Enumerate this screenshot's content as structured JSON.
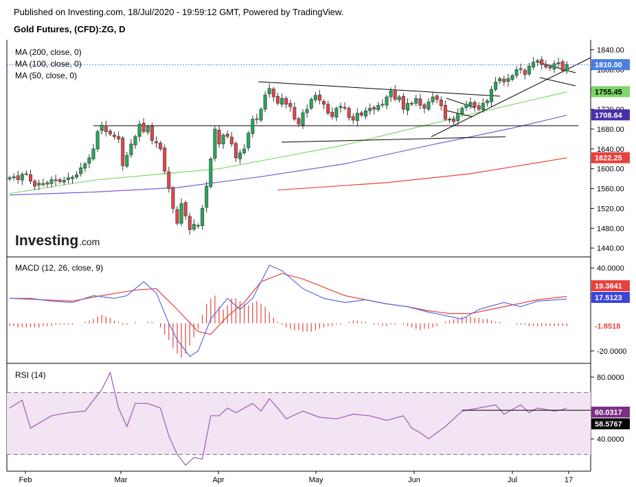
{
  "header": {
    "published": "Published on Investing.com, 18/Jul/2020 - 19:59:12 GMT, Powered by TradingView.",
    "symbol": "Gold Futures, (CFD):ZG, D"
  },
  "logo": {
    "main": "Investing",
    "suffix": ".com"
  },
  "colors": {
    "up_candle": "#26a65b",
    "down_candle": "#e0474c",
    "ma50": "#7ed66a",
    "ma100": "#7a5ad6",
    "ma200": "#e8413c",
    "macd_line": "#5b6ae0",
    "signal_line": "#e8413c",
    "histogram": "#e8413c",
    "rsi_line": "#9b59b6",
    "rsi_band": "#f3e4f3",
    "price_badge": "#4a7fe0",
    "ma50_badge": "#7ed66a",
    "ma100_badge": "#4a30a8",
    "ma200_badge": "#e8413c"
  },
  "chart_data": [
    {
      "type": "candlestick",
      "panel": "price",
      "ma_labels": [
        "MA (200, close, 0)",
        "MA (100, close, 0)",
        "MA (50, close, 0)"
      ],
      "y_ticks": [
        "1840.00",
        "1800.00",
        "1760.00",
        "1720.00",
        "1680.00",
        "1640.00",
        "1600.00",
        "1560.00",
        "1520.00",
        "1480.00",
        "1440.00"
      ],
      "ylim": [
        1425,
        1860
      ],
      "x_labels": [
        "Feb",
        "Mar",
        "Apr",
        "May",
        "Jun",
        "Jul",
        "17"
      ],
      "badges": {
        "last_price": "1810.00",
        "ma50": "1755.45",
        "ma100": "1708.64",
        "ma200": "1622.25"
      },
      "last_price": 1810,
      "closes": [
        1582,
        1584,
        1578,
        1589,
        1590,
        1575,
        1565,
        1571,
        1568,
        1572,
        1578,
        1576,
        1574,
        1577,
        1582,
        1583,
        1588,
        1602,
        1610,
        1622,
        1640,
        1675,
        1688,
        1675,
        1670,
        1665,
        1660,
        1606,
        1627,
        1650,
        1665,
        1690,
        1675,
        1685,
        1657,
        1652,
        1640,
        1595,
        1560,
        1520,
        1490,
        1530,
        1505,
        1477,
        1488,
        1485,
        1520,
        1565,
        1620,
        1680,
        1650,
        1668,
        1665,
        1650,
        1622,
        1632,
        1640,
        1672,
        1700,
        1700,
        1720,
        1749,
        1762,
        1745,
        1732,
        1742,
        1730,
        1725,
        1700,
        1690,
        1713,
        1720,
        1740,
        1748,
        1738,
        1730,
        1712,
        1705,
        1722,
        1726,
        1722,
        1703,
        1698,
        1712,
        1708,
        1717,
        1722,
        1720,
        1728,
        1730,
        1745,
        1757,
        1740,
        1745,
        1720,
        1732,
        1730,
        1742,
        1728,
        1722,
        1735,
        1745,
        1740,
        1727,
        1700,
        1700,
        1695,
        1712,
        1722,
        1730,
        1734,
        1725,
        1720,
        1732,
        1737,
        1760,
        1775,
        1782,
        1775,
        1782,
        1788,
        1800,
        1800,
        1790,
        1807,
        1815,
        1818,
        1810,
        1805,
        1803,
        1812,
        1814,
        1798,
        1810
      ],
      "ma50": [
        [
          0,
          1550
        ],
        [
          20,
          1577
        ],
        [
          50,
          1600
        ],
        [
          80,
          1648
        ],
        [
          110,
          1710
        ],
        [
          133,
          1755
        ]
      ],
      "ma100": [
        [
          0,
          1547
        ],
        [
          20,
          1553
        ],
        [
          40,
          1562
        ],
        [
          60,
          1584
        ],
        [
          80,
          1610
        ],
        [
          100,
          1647
        ],
        [
          120,
          1682
        ],
        [
          133,
          1708
        ]
      ],
      "ma200": [
        [
          64,
          1557
        ],
        [
          90,
          1572
        ],
        [
          110,
          1590
        ],
        [
          133,
          1622
        ]
      ]
    },
    {
      "type": "line",
      "panel": "macd",
      "title": "MACD (12, 26, close, 9)",
      "y_ticks": [
        "40.0000",
        "-20.0000"
      ],
      "ylim": [
        -28,
        47
      ],
      "badges": {
        "signal": "19.3641",
        "macd": "17.5123",
        "hist": "-1.8518"
      },
      "macd": [
        [
          0,
          18
        ],
        [
          5,
          18
        ],
        [
          10,
          16
        ],
        [
          15,
          15
        ],
        [
          20,
          20
        ],
        [
          25,
          18
        ],
        [
          28,
          20
        ],
        [
          32,
          30
        ],
        [
          35,
          22
        ],
        [
          38,
          0
        ],
        [
          40,
          -12
        ],
        [
          43,
          -24
        ],
        [
          45,
          -20
        ],
        [
          48,
          3
        ],
        [
          52,
          18
        ],
        [
          55,
          10
        ],
        [
          58,
          18
        ],
        [
          62,
          42
        ],
        [
          65,
          38
        ],
        [
          70,
          25
        ],
        [
          75,
          18
        ],
        [
          80,
          15
        ],
        [
          85,
          17
        ],
        [
          90,
          14
        ],
        [
          95,
          12
        ],
        [
          100,
          8
        ],
        [
          105,
          5
        ],
        [
          108,
          3
        ],
        [
          112,
          10
        ],
        [
          118,
          15
        ],
        [
          122,
          12
        ],
        [
          126,
          16
        ],
        [
          133,
          17.5
        ]
      ],
      "signal": [
        [
          0,
          18
        ],
        [
          8,
          17
        ],
        [
          15,
          16
        ],
        [
          22,
          20
        ],
        [
          30,
          24
        ],
        [
          35,
          25
        ],
        [
          40,
          10
        ],
        [
          45,
          -6
        ],
        [
          48,
          -8
        ],
        [
          52,
          5
        ],
        [
          56,
          15
        ],
        [
          60,
          30
        ],
        [
          65,
          36
        ],
        [
          70,
          32
        ],
        [
          75,
          26
        ],
        [
          80,
          20
        ],
        [
          90,
          14
        ],
        [
          95,
          12
        ],
        [
          100,
          9
        ],
        [
          105,
          7
        ],
        [
          110,
          7
        ],
        [
          118,
          12
        ],
        [
          126,
          17
        ],
        [
          133,
          19.4
        ]
      ],
      "hist": [
        -2,
        -2,
        -3,
        -3,
        -3,
        -3,
        -3,
        -3,
        -2,
        -2,
        -2,
        -1,
        -1,
        -1,
        -1,
        -1,
        0,
        0,
        1,
        2,
        3,
        5,
        6,
        5,
        4,
        2,
        1,
        -1,
        -1,
        0,
        1,
        0,
        0,
        1,
        1,
        0,
        -3,
        -8,
        -12,
        -18,
        -22,
        -25,
        -22,
        -16,
        -10,
        -4,
        6,
        14,
        18,
        20,
        12,
        10,
        13,
        18,
        18,
        16,
        14,
        13,
        15,
        16,
        14,
        12,
        8,
        4,
        1,
        -1,
        -3,
        -4,
        -5,
        -5,
        -6,
        -6,
        -6,
        -5,
        -4,
        -3,
        -2,
        -2,
        -1,
        -1,
        0,
        1,
        2,
        2,
        1,
        1,
        0,
        -1,
        -1,
        -2,
        -2,
        -1,
        -1,
        0,
        -1,
        -2,
        -3,
        -4,
        -5,
        -4,
        -4,
        -3,
        -2,
        0,
        1,
        2,
        3,
        4,
        5,
        5,
        5,
        4,
        4,
        3,
        3,
        2,
        1,
        1,
        0,
        0,
        0,
        -1,
        -1,
        -1,
        -2,
        -2,
        -2,
        -2,
        -2,
        -2,
        -2,
        -2,
        -2,
        -2
      ]
    },
    {
      "type": "line",
      "panel": "rsi",
      "title": "RSI (14)",
      "y_ticks": [
        "80.0000",
        "40.0000"
      ],
      "ylim": [
        20,
        88
      ],
      "band": [
        30,
        70
      ],
      "badges": {
        "rsi": "60.0317",
        "level": "58.5767"
      },
      "level": 58.5767,
      "level_from": 108,
      "rsi": [
        [
          0,
          60
        ],
        [
          3,
          65
        ],
        [
          5,
          47
        ],
        [
          10,
          55
        ],
        [
          14,
          57
        ],
        [
          18,
          58
        ],
        [
          20,
          65
        ],
        [
          22,
          72
        ],
        [
          24,
          83
        ],
        [
          26,
          60
        ],
        [
          28,
          48
        ],
        [
          30,
          63
        ],
        [
          33,
          63
        ],
        [
          36,
          60
        ],
        [
          38,
          42
        ],
        [
          40,
          30
        ],
        [
          42,
          23
        ],
        [
          44,
          28
        ],
        [
          46,
          27
        ],
        [
          48,
          55
        ],
        [
          50,
          55
        ],
        [
          52,
          60
        ],
        [
          54,
          57
        ],
        [
          58,
          63
        ],
        [
          60,
          58
        ],
        [
          62,
          66
        ],
        [
          64,
          60
        ],
        [
          66,
          53
        ],
        [
          70,
          58
        ],
        [
          74,
          54
        ],
        [
          78,
          53
        ],
        [
          82,
          56
        ],
        [
          86,
          55
        ],
        [
          90,
          52
        ],
        [
          94,
          55
        ],
        [
          96,
          47
        ],
        [
          98,
          44
        ],
        [
          100,
          40
        ],
        [
          104,
          48
        ],
        [
          106,
          53
        ],
        [
          108,
          58
        ],
        [
          112,
          60
        ],
        [
          116,
          62
        ],
        [
          118,
          56
        ],
        [
          122,
          62
        ],
        [
          124,
          57
        ],
        [
          126,
          60
        ],
        [
          130,
          58
        ],
        [
          132,
          59
        ],
        [
          133,
          60
        ]
      ]
    }
  ]
}
